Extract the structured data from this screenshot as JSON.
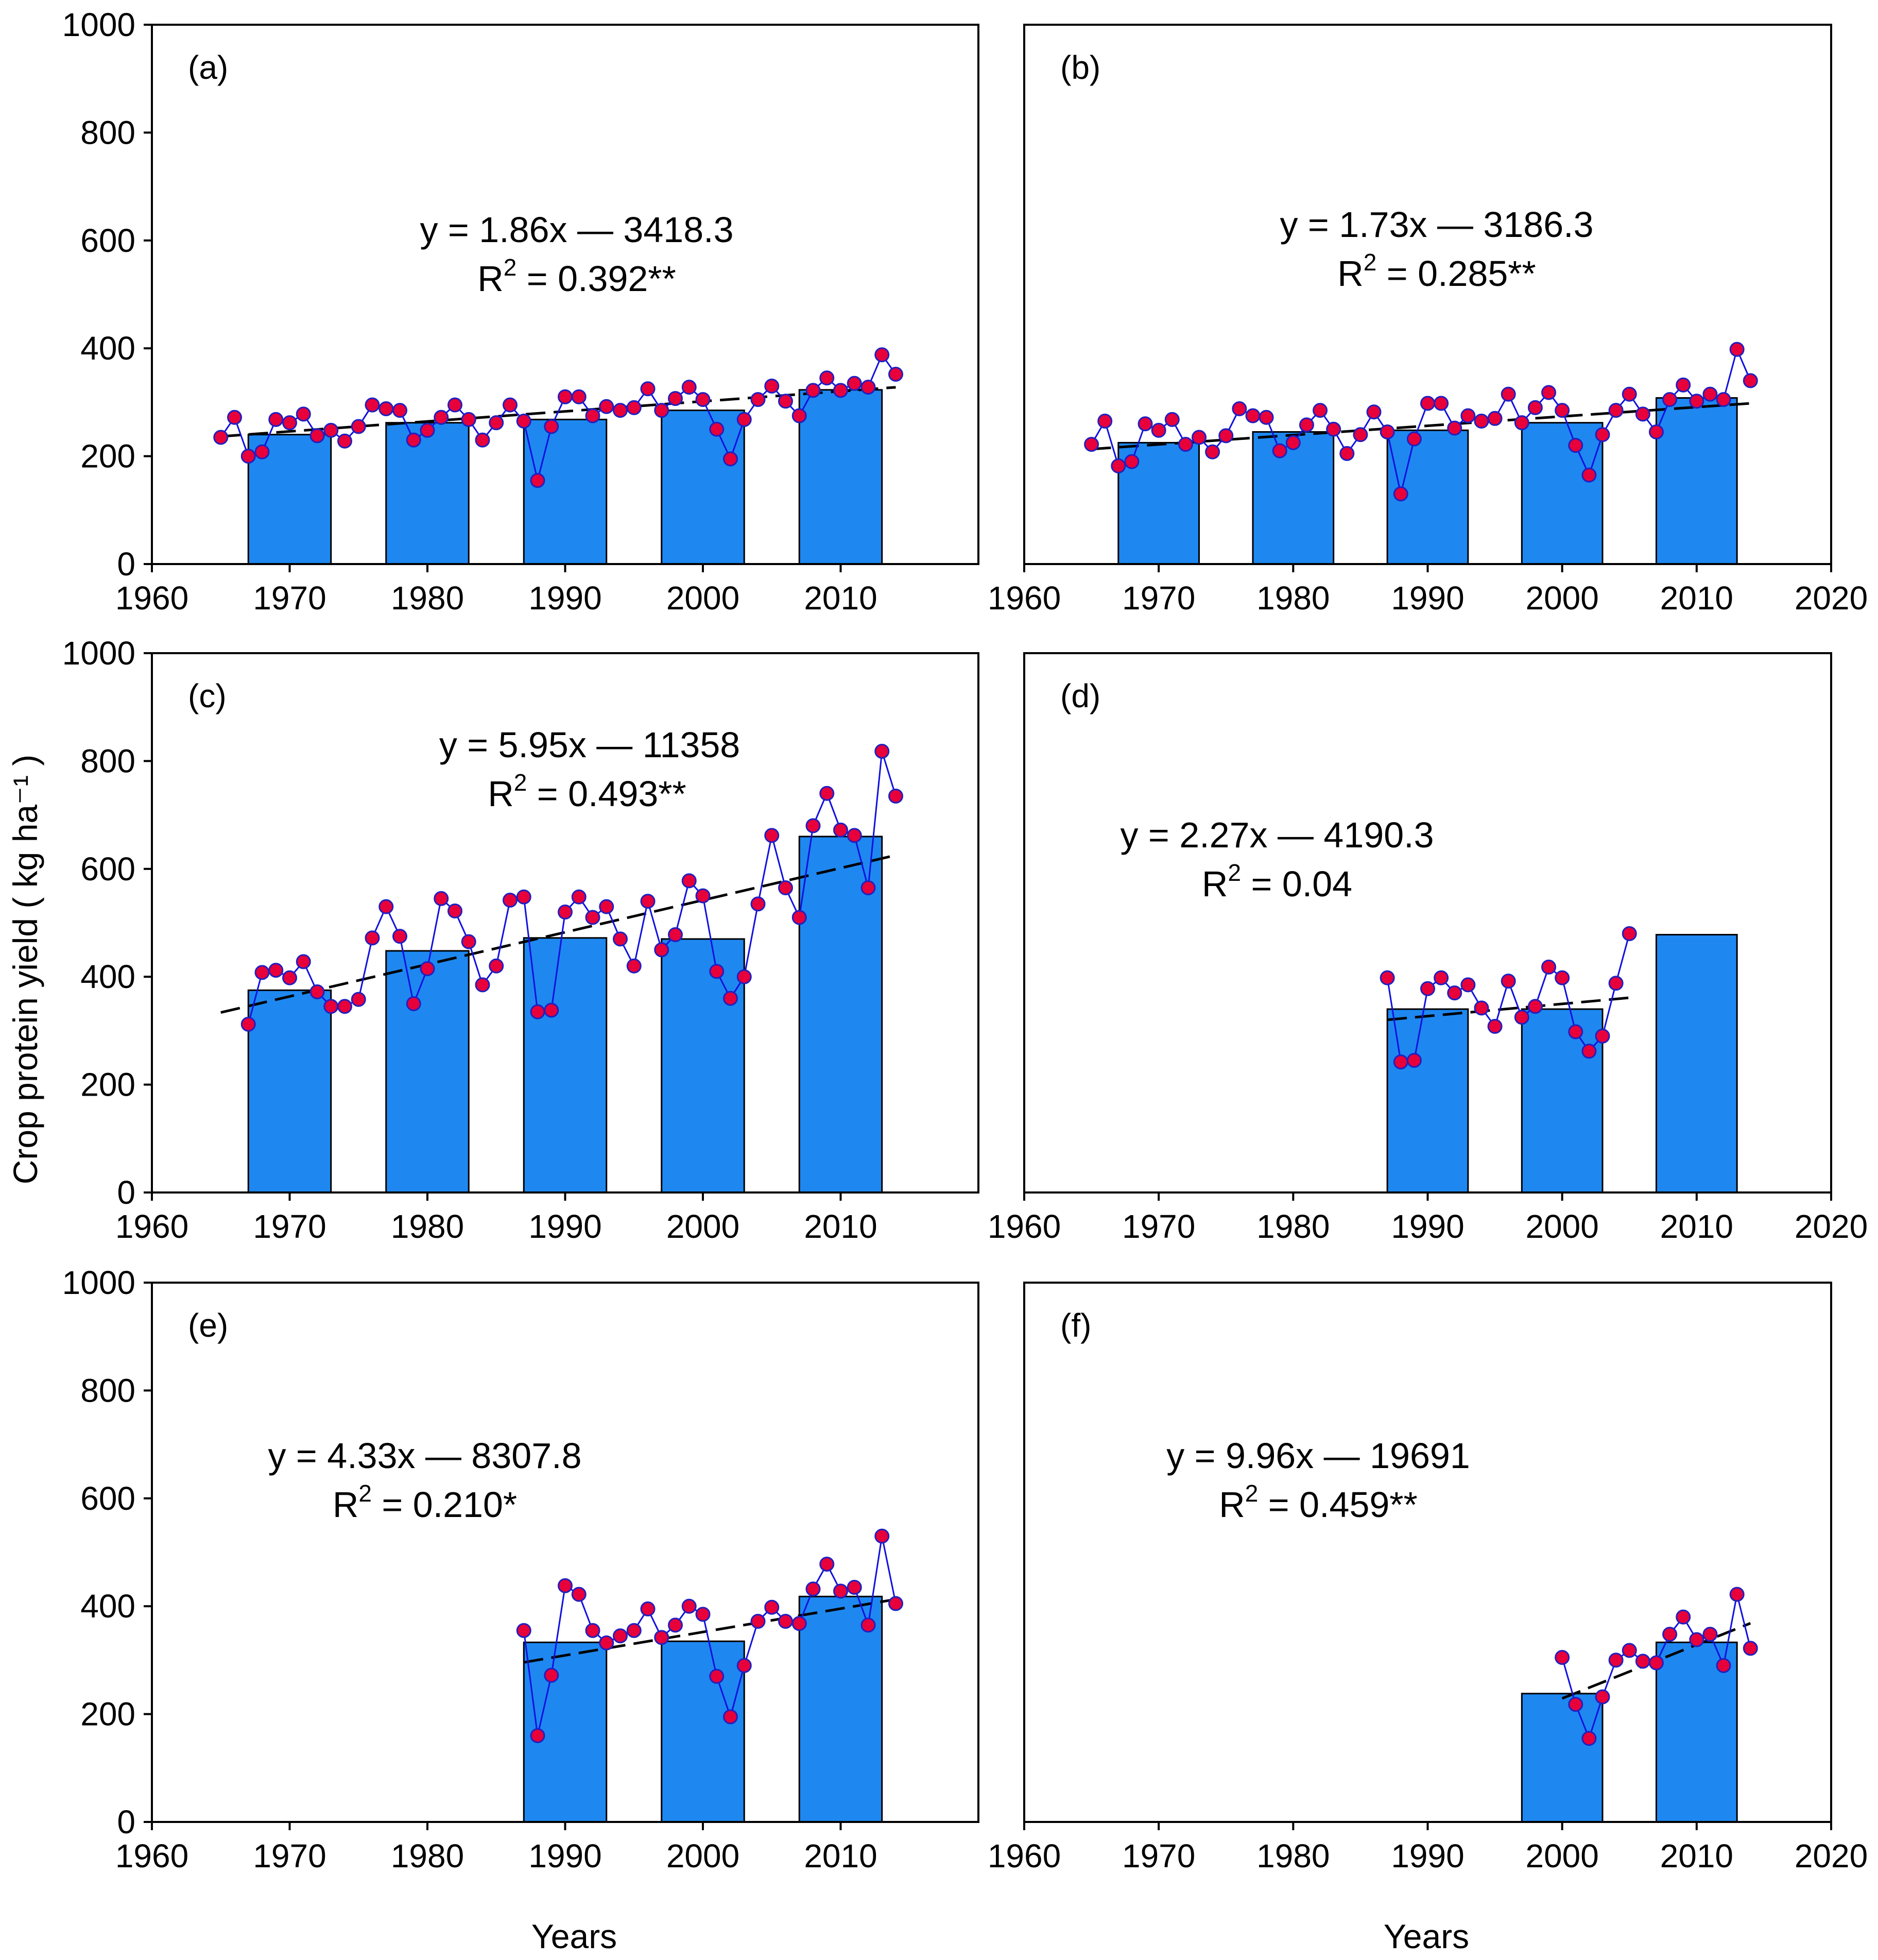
{
  "figure": {
    "ylabel": "Crop protein yield ( kg ha⁻¹ )",
    "xlabel_left": "Years",
    "xlabel_right": "Years"
  },
  "colors": {
    "bar_fill": "#1E88F0",
    "bar_stroke": "#000000",
    "line": "#1010E0",
    "marker_fill": "#E8003A",
    "marker_stroke": "#2020C0",
    "trend": "#000000"
  },
  "chart_data": [
    {
      "type": "bar+line",
      "panel": "(a)",
      "xlim": [
        1960,
        2020
      ],
      "ylim": [
        0,
        1000
      ],
      "xticks": [
        "1960",
        "1970",
        "1980",
        "1990",
        "2000",
        "2010"
      ],
      "yticks": [
        "0",
        "200",
        "400",
        "600",
        "800",
        "1000"
      ],
      "equation": "y = 1.86x — 3418.3",
      "r2_text": "= 0.392**",
      "bars": [
        {
          "x": 1970,
          "y": 240
        },
        {
          "x": 1980,
          "y": 262
        },
        {
          "x": 1990,
          "y": 268
        },
        {
          "x": 2000,
          "y": 285
        },
        {
          "x": 2010,
          "y": 323
        }
      ],
      "years": [
        1965,
        1966,
        1967,
        1968,
        1969,
        1970,
        1971,
        1972,
        1973,
        1974,
        1975,
        1976,
        1977,
        1978,
        1979,
        1980,
        1981,
        1982,
        1983,
        1984,
        1985,
        1986,
        1987,
        1988,
        1989,
        1990,
        1991,
        1992,
        1993,
        1994,
        1995,
        1996,
        1997,
        1998,
        1999,
        2000,
        2001,
        2002,
        2003,
        2004,
        2005,
        2006,
        2007,
        2008,
        2009,
        2010,
        2011,
        2012,
        2013,
        2014
      ],
      "values": [
        235,
        272,
        200,
        208,
        268,
        262,
        278,
        238,
        248,
        228,
        255,
        295,
        288,
        285,
        230,
        248,
        272,
        295,
        268,
        230,
        262,
        295,
        265,
        155,
        255,
        310,
        310,
        275,
        292,
        285,
        290,
        325,
        285,
        307,
        328,
        305,
        250,
        195,
        268,
        305,
        330,
        302,
        275,
        322,
        345,
        322,
        335,
        328,
        388,
        352
      ],
      "trend": {
        "slope": 1.86,
        "intercept": -3418.3,
        "x_start": 1965,
        "x_end": 2014
      }
    },
    {
      "type": "bar+line",
      "panel": "(b)",
      "xlim": [
        1960,
        2020
      ],
      "ylim": [
        0,
        1000
      ],
      "xticks": [
        "1960",
        "1970",
        "1980",
        "1990",
        "2000",
        "2010",
        "2020"
      ],
      "yticks": [],
      "equation": "y = 1.73x — 3186.3",
      "r2_text": "= 0.285**",
      "bars": [
        {
          "x": 1970,
          "y": 225
        },
        {
          "x": 1980,
          "y": 245
        },
        {
          "x": 1990,
          "y": 248
        },
        {
          "x": 2000,
          "y": 262
        },
        {
          "x": 2010,
          "y": 308
        }
      ],
      "years": [
        1965,
        1966,
        1967,
        1968,
        1969,
        1970,
        1971,
        1972,
        1973,
        1974,
        1975,
        1976,
        1977,
        1978,
        1979,
        1980,
        1981,
        1982,
        1983,
        1984,
        1985,
        1986,
        1987,
        1988,
        1989,
        1990,
        1991,
        1992,
        1993,
        1994,
        1995,
        1996,
        1997,
        1998,
        1999,
        2000,
        2001,
        2002,
        2003,
        2004,
        2005,
        2006,
        2007,
        2008,
        2009,
        2010,
        2011,
        2012,
        2013,
        2014
      ],
      "values": [
        222,
        265,
        182,
        190,
        260,
        248,
        268,
        222,
        235,
        208,
        238,
        288,
        275,
        272,
        210,
        225,
        258,
        285,
        250,
        205,
        240,
        282,
        245,
        130,
        232,
        298,
        298,
        252,
        275,
        265,
        270,
        315,
        262,
        290,
        318,
        285,
        220,
        165,
        240,
        285,
        315,
        278,
        245,
        305,
        332,
        302,
        315,
        305,
        398,
        340
      ],
      "trend": {
        "slope": 1.73,
        "intercept": -3186.3,
        "x_start": 1965,
        "x_end": 2014
      }
    },
    {
      "type": "bar+line",
      "panel": "(c)",
      "xlim": [
        1960,
        2020
      ],
      "ylim": [
        0,
        1000
      ],
      "xticks": [
        "1960",
        "1970",
        "1980",
        "1990",
        "2000",
        "2010"
      ],
      "yticks": [
        "0",
        "200",
        "400",
        "600",
        "800",
        "1000"
      ],
      "equation": "y = 5.95x — 11358",
      "r2_text": "= 0.493**",
      "bars": [
        {
          "x": 1970,
          "y": 375
        },
        {
          "x": 1980,
          "y": 448
        },
        {
          "x": 1990,
          "y": 472
        },
        {
          "x": 2000,
          "y": 470
        },
        {
          "x": 2010,
          "y": 660
        }
      ],
      "years": [
        1967,
        1968,
        1969,
        1970,
        1971,
        1972,
        1973,
        1974,
        1975,
        1976,
        1977,
        1978,
        1979,
        1980,
        1981,
        1982,
        1983,
        1984,
        1985,
        1986,
        1987,
        1988,
        1989,
        1990,
        1991,
        1992,
        1993,
        1994,
        1995,
        1996,
        1997,
        1998,
        1999,
        2000,
        2001,
        2002,
        2003,
        2004,
        2005,
        2006,
        2007,
        2008,
        2009,
        2010,
        2011,
        2012,
        2013,
        2014
      ],
      "values": [
        312,
        408,
        412,
        398,
        428,
        372,
        345,
        345,
        358,
        472,
        530,
        475,
        350,
        415,
        545,
        522,
        465,
        385,
        420,
        542,
        548,
        335,
        338,
        520,
        548,
        510,
        530,
        470,
        420,
        540,
        450,
        478,
        578,
        550,
        410,
        360,
        400,
        535,
        662,
        565,
        510,
        680,
        740,
        672,
        662,
        565,
        818,
        735
      ],
      "trend": {
        "slope": 5.95,
        "intercept": -11358,
        "x_start": 1965,
        "x_end": 2014
      }
    },
    {
      "type": "bar+line",
      "panel": "(d)",
      "xlim": [
        1960,
        2020
      ],
      "ylim": [
        0,
        1000
      ],
      "xticks": [
        "1960",
        "1970",
        "1980",
        "1990",
        "2000",
        "2010",
        "2020"
      ],
      "yticks": [],
      "equation": "y = 2.27x — 4190.3",
      "r2_text": "= 0.04",
      "bars": [
        {
          "x": 1990,
          "y": 340
        },
        {
          "x": 2000,
          "y": 340
        },
        {
          "x": 2010,
          "y": 478
        }
      ],
      "years": [
        1987,
        1988,
        1989,
        1990,
        1991,
        1992,
        1993,
        1994,
        1995,
        1996,
        1997,
        1998,
        1999,
        2000,
        2001,
        2002,
        2003,
        2004,
        2005
      ],
      "values": [
        398,
        242,
        245,
        378,
        398,
        370,
        385,
        342,
        308,
        392,
        325,
        345,
        418,
        398,
        298,
        262,
        290,
        388,
        480
      ],
      "trend": {
        "slope": 2.27,
        "intercept": -4190.3,
        "x_start": 1987,
        "x_end": 2005
      }
    },
    {
      "type": "bar+line",
      "panel": "(e)",
      "xlim": [
        1960,
        2020
      ],
      "ylim": [
        0,
        1000
      ],
      "xticks": [
        "1960",
        "1970",
        "1980",
        "1990",
        "2000",
        "2010"
      ],
      "yticks": [
        "0",
        "200",
        "400",
        "600",
        "800",
        "1000"
      ],
      "equation": "y = 4.33x — 8307.8",
      "r2_text": "= 0.210*",
      "bars": [
        {
          "x": 1990,
          "y": 333
        },
        {
          "x": 2000,
          "y": 335
        },
        {
          "x": 2010,
          "y": 418
        }
      ],
      "years": [
        1987,
        1988,
        1989,
        1990,
        1991,
        1992,
        1993,
        1994,
        1995,
        1996,
        1997,
        1998,
        1999,
        2000,
        2001,
        2002,
        2003,
        2004,
        2005,
        2006,
        2007,
        2008,
        2009,
        2010,
        2011,
        2012,
        2013,
        2014
      ],
      "values": [
        355,
        160,
        272,
        438,
        422,
        355,
        332,
        345,
        355,
        395,
        342,
        365,
        400,
        385,
        270,
        195,
        290,
        372,
        398,
        372,
        368,
        432,
        478,
        428,
        435,
        365,
        530,
        405
      ],
      "trend": {
        "slope": 4.33,
        "intercept": -8307.8,
        "x_start": 1987,
        "x_end": 2014
      }
    },
    {
      "type": "bar+line",
      "panel": "(f)",
      "xlim": [
        1960,
        2020
      ],
      "ylim": [
        0,
        1000
      ],
      "xticks": [
        "1960",
        "1970",
        "1980",
        "1990",
        "2000",
        "2010",
        "2020"
      ],
      "yticks": [],
      "equation": "y = 9.96x — 19691",
      "r2_text": "= 0.459**",
      "bars": [
        {
          "x": 2000,
          "y": 238
        },
        {
          "x": 2010,
          "y": 333
        }
      ],
      "years": [
        2000,
        2001,
        2002,
        2003,
        2004,
        2005,
        2006,
        2007,
        2008,
        2009,
        2010,
        2011,
        2012,
        2013,
        2014
      ],
      "values": [
        305,
        218,
        155,
        232,
        300,
        318,
        298,
        295,
        348,
        380,
        338,
        348,
        290,
        422,
        322
      ],
      "trend": {
        "slope": 9.96,
        "intercept": -19691,
        "x_start": 2000,
        "x_end": 2014
      }
    }
  ]
}
